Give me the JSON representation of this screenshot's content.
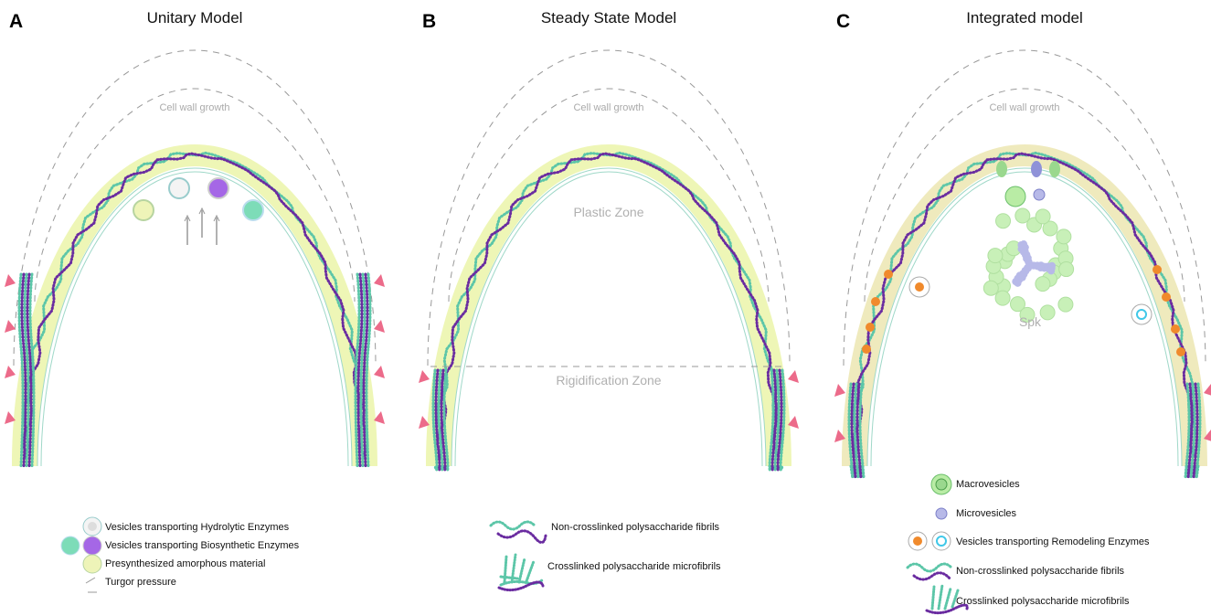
{
  "panels": [
    {
      "letter": "A",
      "title": "Unitary Model",
      "growth_label": "Cell wall growth",
      "legend": [
        "Vesicles transporting Hydrolytic Enzymes",
        "Vesicles transporting Biosynthetic Enzymes",
        "Presynthesized amorphous material",
        "Turgor pressure"
      ]
    },
    {
      "letter": "B",
      "title": "Steady State Model",
      "growth_label": "Cell wall growth",
      "zones": [
        "Plastic Zone",
        "Rigidification Zone"
      ],
      "legend": [
        "Non-crosslinked polysaccharide fibrils",
        "Crosslinked polysaccharide microfibrils"
      ]
    },
    {
      "letter": "C",
      "title": "Integrated model",
      "growth_label": "Cell wall growth",
      "zones": [
        "Spk"
      ],
      "legend": [
        "Macrovesicles",
        "Microvesicles",
        "Vesicles transporting Remodeling Enzymes",
        "Non-crosslinked polysaccharide fibrils",
        "Crosslinked polysaccharide microfibrils"
      ]
    }
  ]
}
